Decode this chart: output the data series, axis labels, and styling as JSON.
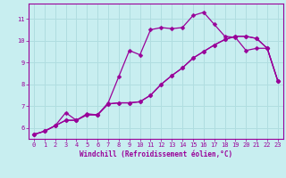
{
  "xlabel": "Windchill (Refroidissement éolien,°C)",
  "xlim": [
    -0.5,
    23.5
  ],
  "ylim": [
    5.5,
    11.7
  ],
  "yticks": [
    6,
    7,
    8,
    9,
    10,
    11
  ],
  "xticks": [
    0,
    1,
    2,
    3,
    4,
    5,
    6,
    7,
    8,
    9,
    10,
    11,
    12,
    13,
    14,
    15,
    16,
    17,
    18,
    19,
    20,
    21,
    22,
    23
  ],
  "bg_color": "#c8eef0",
  "line_color": "#990099",
  "grid_color": "#b0dde0",
  "line1_x": [
    0,
    1,
    2,
    3,
    4,
    5,
    6,
    7,
    8,
    9,
    10,
    11,
    12,
    13,
    14,
    15,
    16,
    17,
    18,
    19,
    20,
    21,
    22,
    23
  ],
  "line1_y": [
    5.7,
    5.85,
    6.1,
    6.7,
    6.35,
    6.65,
    6.6,
    7.15,
    8.35,
    9.55,
    9.35,
    10.5,
    10.6,
    10.55,
    10.6,
    11.15,
    11.3,
    10.75,
    10.2,
    10.15,
    9.55,
    9.65,
    9.65,
    8.15
  ],
  "line2_x": [
    0,
    1,
    2,
    3,
    4,
    5,
    6,
    7,
    8,
    9,
    10,
    11,
    12,
    13,
    14,
    15,
    16,
    17,
    18,
    19,
    20,
    21,
    22,
    23
  ],
  "line2_y": [
    5.7,
    5.85,
    6.1,
    6.35,
    6.35,
    6.6,
    6.6,
    7.1,
    7.15,
    7.15,
    7.2,
    7.5,
    8.0,
    8.4,
    8.75,
    9.2,
    9.5,
    9.8,
    10.05,
    10.2,
    10.2,
    10.1,
    9.65,
    8.15
  ],
  "line3_x": [
    0,
    1,
    2,
    3,
    4,
    5,
    6,
    7,
    8,
    9,
    10,
    11,
    12,
    13,
    14,
    15,
    16,
    17,
    18,
    19,
    20,
    21,
    22,
    23
  ],
  "line3_y": [
    5.7,
    5.85,
    6.1,
    6.35,
    6.35,
    6.6,
    6.6,
    7.1,
    7.15,
    7.15,
    7.2,
    7.5,
    8.0,
    8.4,
    8.75,
    9.2,
    9.5,
    9.8,
    10.05,
    10.2,
    10.2,
    10.1,
    9.65,
    8.15
  ],
  "markersize": 2.5,
  "linewidth": 0.9,
  "tick_fontsize": 5.0,
  "xlabel_fontsize": 5.5
}
